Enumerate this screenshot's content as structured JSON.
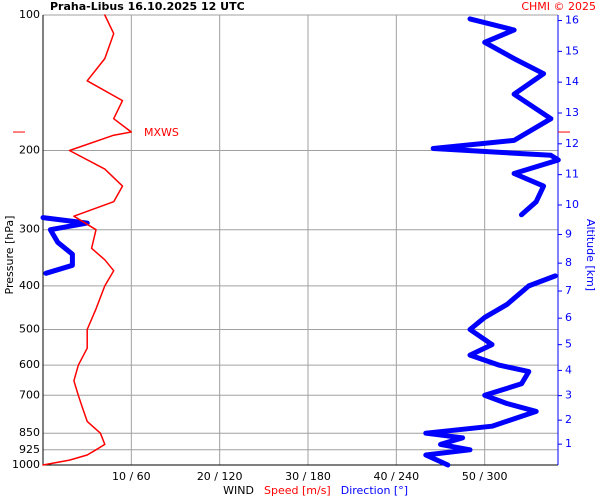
{
  "chart_data": {
    "type": "line",
    "title": "Praha-Libus   16.10.2025 12 UTC",
    "credit": "CHMI © 2025",
    "ylabel": "Pressure [hPa]",
    "y2label": "Altitude [km]",
    "legend_title": "WIND",
    "log_y": true,
    "grid": true,
    "ylim": [
      1000,
      100
    ],
    "yticks": [
      100,
      200,
      300,
      400,
      500,
      600,
      700,
      850,
      925,
      1000
    ],
    "xlim": [
      0,
      58.3
    ],
    "x2lim": [
      0,
      349.8
    ],
    "xticks": [
      {
        "value": 10,
        "label": "10 / 60"
      },
      {
        "value": 20,
        "label": "20 / 120"
      },
      {
        "value": 30,
        "label": "30 / 180"
      },
      {
        "value": 40,
        "label": "40 / 240"
      },
      {
        "value": 50,
        "label": "50 / 300"
      }
    ],
    "y2ticks": [
      1,
      2,
      3,
      4,
      5,
      6,
      7,
      8,
      9,
      10,
      11,
      12,
      13,
      14,
      15,
      16
    ],
    "annotation": {
      "text": "MXWS",
      "pressure": 182
    },
    "series": [
      {
        "name": "Speed [m/s]",
        "color": "#ff0000",
        "pressure": [
          1000,
          975,
          950,
          925,
          900,
          850,
          800,
          750,
          700,
          650,
          600,
          550,
          500,
          450,
          400,
          370,
          350,
          330,
          300,
          280,
          260,
          240,
          220,
          200,
          185,
          182,
          170,
          155,
          140,
          125,
          110,
          100
        ],
        "values": [
          0,
          3,
          5,
          6,
          7,
          6.5,
          5,
          4.5,
          4,
          3.5,
          4,
          5,
          5,
          6,
          7,
          8,
          7,
          5.5,
          6,
          3.5,
          8,
          9,
          7,
          3,
          8,
          10,
          8,
          9,
          5,
          7,
          8,
          7
        ]
      },
      {
        "name": "Direction [°]",
        "color": "#0000ff",
        "axis": "x2",
        "pressure": [
          1000,
          950,
          925,
          900,
          870,
          850,
          820,
          760,
          730,
          700,
          660,
          620,
          600,
          570,
          540,
          500,
          470,
          440,
          400,
          380,
          378,
          375,
          360,
          340,
          320,
          300,
          290,
          282,
          279,
          278,
          260,
          240,
          225,
          210,
          205,
          198,
          190,
          170,
          150,
          135,
          125,
          115,
          108,
          102
        ],
        "values": [
          275,
          260,
          290,
          270,
          285,
          260,
          305,
          335,
          315,
          300,
          325,
          330,
          310,
          290,
          305,
          290,
          300,
          315,
          330,
          348,
          null,
          2,
          20,
          20,
          10,
          5,
          30,
          0,
          null,
          325,
          335,
          340,
          320,
          350,
          345,
          265,
          320,
          345,
          320,
          340,
          320,
          300,
          320,
          290
        ]
      }
    ]
  }
}
